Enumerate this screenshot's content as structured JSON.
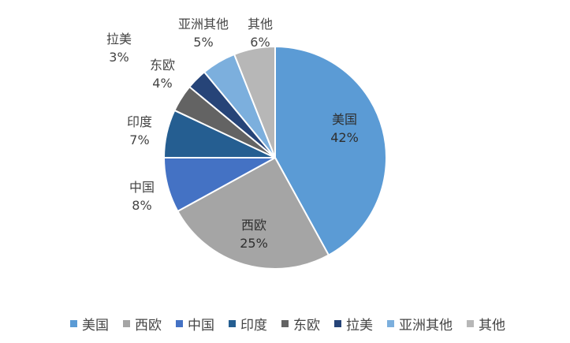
{
  "chart_data": {
    "type": "pie",
    "slices": [
      {
        "label": "美国",
        "value": 42,
        "value_label": "42%",
        "color": "#5b9bd5"
      },
      {
        "label": "西欧",
        "value": 25,
        "value_label": "25%",
        "color": "#a5a5a5"
      },
      {
        "label": "中国",
        "value": 8,
        "value_label": "8%",
        "color": "#4472c4"
      },
      {
        "label": "印度",
        "value": 7,
        "value_label": "7%",
        "color": "#255e91"
      },
      {
        "label": "东欧",
        "value": 4,
        "value_label": "4%",
        "color": "#636363"
      },
      {
        "label": "拉美",
        "value": 3,
        "value_label": "3%",
        "color": "#264478"
      },
      {
        "label": "亚洲其他",
        "value": 5,
        "value_label": "5%",
        "color": "#7cafdd"
      },
      {
        "label": "其他",
        "value": 6,
        "value_label": "6%",
        "color": "#b7b7b7"
      }
    ],
    "start_angle_deg": 0,
    "direction": "clockwise",
    "legend_position": "bottom"
  }
}
